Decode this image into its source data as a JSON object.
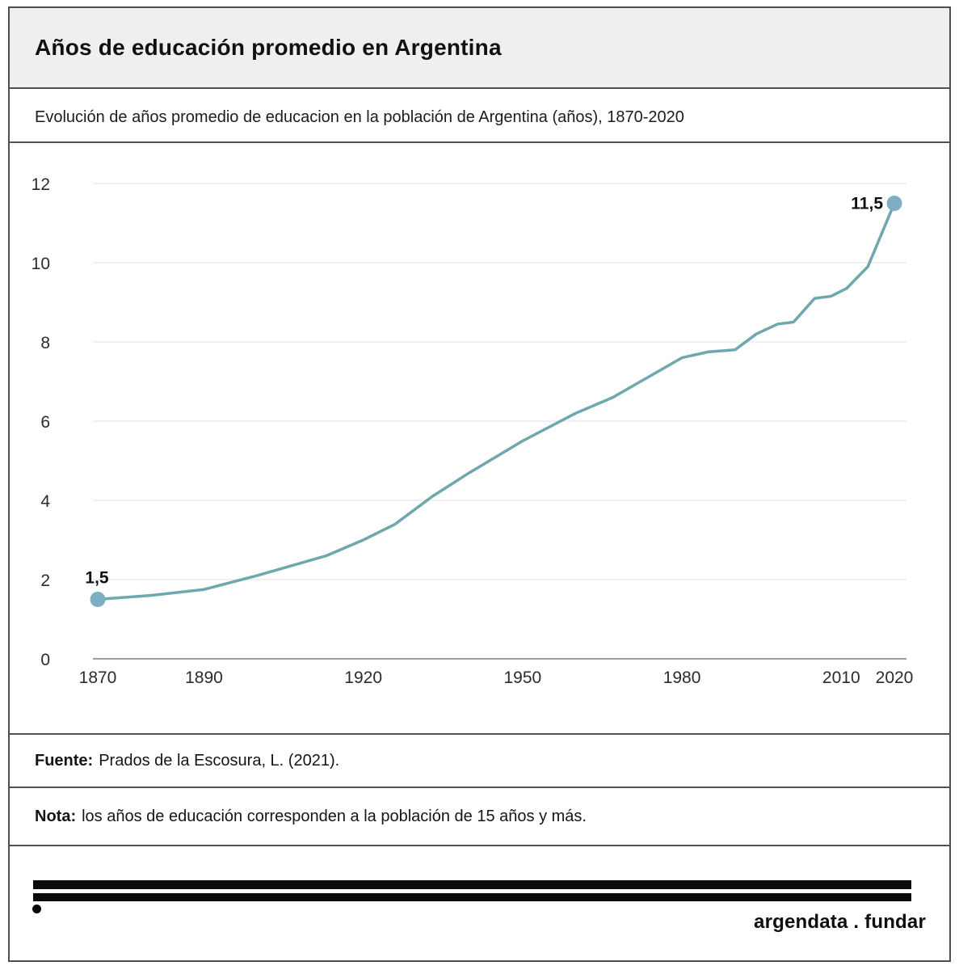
{
  "header": {
    "title": "Años de educación promedio en Argentina"
  },
  "subtitle": "Evolución de años promedio de educacion en la población de Argentina (años), 1870-2020",
  "chart_data": {
    "type": "line",
    "title": "Años de educación promedio en Argentina",
    "subtitle": "Evolución de años promedio de educacion en la población de Argentina (años), 1870-2020",
    "series": [
      {
        "name": "Años de educación promedio",
        "x": [
          1870,
          1880,
          1890,
          1900,
          1913,
          1920,
          1926,
          1933,
          1940,
          1950,
          1960,
          1967,
          1980,
          1985,
          1990,
          1994,
          1998,
          2001,
          2005,
          2008,
          2011,
          2015,
          2020
        ],
        "y": [
          1.5,
          1.6,
          1.75,
          2.1,
          2.6,
          3.0,
          3.4,
          4.1,
          4.7,
          5.5,
          6.2,
          6.6,
          7.6,
          7.75,
          7.8,
          8.2,
          8.45,
          8.5,
          9.1,
          9.15,
          9.35,
          9.9,
          11.5
        ]
      }
    ],
    "xlabel": "",
    "ylabel": "",
    "xticks": [
      1870,
      1890,
      1920,
      1950,
      1980,
      2010,
      2020
    ],
    "yticks": [
      0,
      2,
      4,
      6,
      8,
      10,
      12
    ],
    "xlim": [
      1870,
      2020
    ],
    "ylim": [
      0,
      12
    ],
    "grid": "horizontal",
    "legend": "none",
    "point_labels": {
      "first": "1,5",
      "last": "11,5"
    },
    "colors": {
      "line": "#6ca8ae",
      "point": "#7faec3",
      "grid": "#ececec",
      "axis": "#8f8f8f",
      "tick_text": "#2b2b2b",
      "label_text": "#111111"
    }
  },
  "fuente": {
    "label": "Fuente:",
    "text": "Prados de la Escosura, L. (2021)."
  },
  "nota": {
    "label": "Nota:",
    "text": "los años de educación corresponden a la población de 15 años y más."
  },
  "logo": {
    "text": "argendata . fundar"
  }
}
